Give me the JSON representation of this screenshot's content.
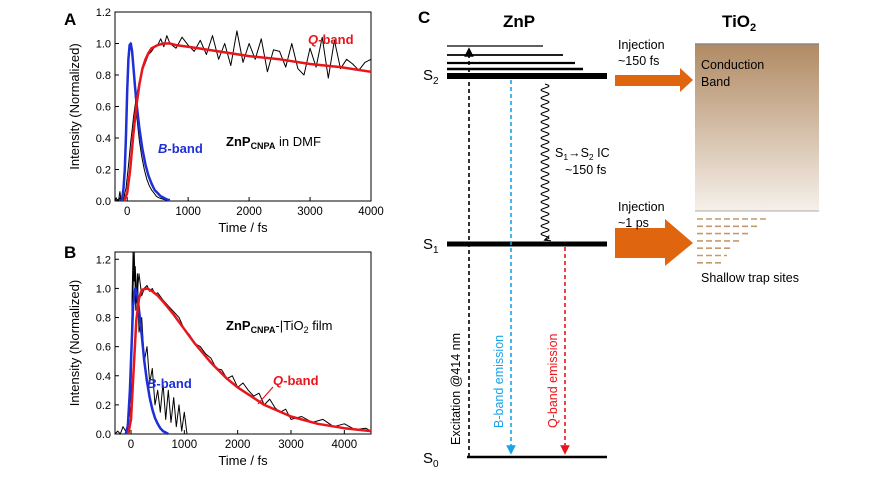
{
  "panels": {
    "a": {
      "letter": "A",
      "annotation": {
        "main": "ZnP",
        "sub": "CNPA",
        "rest": " in DMF"
      },
      "labels": {
        "q": {
          "italic": "Q",
          "rest": "-band"
        },
        "b": {
          "italic": "B",
          "rest": "-band"
        }
      }
    },
    "b": {
      "letter": "B",
      "annotation": {
        "main": "ZnP",
        "sub": "CNPA",
        "rest": "-|TiO",
        "sub2": "2",
        "rest2": " film"
      },
      "labels": {
        "q": {
          "italic": "Q",
          "rest": "-band"
        },
        "b": {
          "italic": "B",
          "rest": "-band"
        }
      }
    },
    "c": {
      "letter": "C"
    }
  },
  "chart_data": [
    {
      "type": "line",
      "panel": "A",
      "xlabel": "Time / fs",
      "ylabel": "Intensity (Normalized)",
      "xlim": [
        -200,
        4000
      ],
      "ylim": [
        0,
        1.2
      ],
      "xticks": [
        0,
        1000,
        2000,
        3000,
        4000
      ],
      "yticks": [
        0.0,
        0.2,
        0.4,
        0.6,
        0.8,
        1.0,
        1.2
      ],
      "colors": {
        "data": "#000000",
        "q_fit": "#e8151b",
        "b_fit": "#1f2fd6"
      },
      "series": [
        {
          "name": "Q-band",
          "role": "data",
          "x": [
            -200,
            -180,
            -160,
            -140,
            -120,
            -100,
            -80,
            -60,
            -40,
            -20,
            0,
            20,
            40,
            60,
            80,
            100,
            120,
            140,
            160,
            180,
            200,
            250,
            300,
            350,
            400,
            450,
            500,
            550,
            600,
            650,
            700,
            800,
            900,
            1000,
            1100,
            1200,
            1300,
            1400,
            1500,
            1600,
            1700,
            1800,
            1900,
            2000,
            2100,
            2200,
            2300,
            2400,
            2500,
            2600,
            2700,
            2800,
            2900,
            3000,
            3100,
            3200,
            3300,
            3400,
            3500,
            3600,
            3700,
            3800,
            3900,
            4000
          ],
          "y": [
            0.0,
            0.02,
            0.0,
            0.01,
            0.06,
            0.0,
            0.03,
            0.0,
            0.05,
            0.08,
            0.15,
            0.22,
            0.3,
            0.38,
            0.45,
            0.52,
            0.58,
            0.63,
            0.68,
            0.72,
            0.76,
            0.83,
            0.88,
            0.93,
            0.95,
            0.98,
            0.99,
            1.03,
            0.98,
            1.05,
            1.0,
            0.97,
            1.04,
            0.99,
            0.95,
            1.02,
            0.93,
            1.05,
            0.9,
            1.0,
            0.86,
            1.08,
            0.88,
            1.0,
            0.9,
            1.03,
            0.82,
            0.96,
            0.95,
            0.85,
            1.0,
            0.84,
            0.8,
            0.97,
            0.85,
            1.04,
            0.78,
            1.02,
            0.84,
            0.9,
            0.87,
            0.83,
            0.88,
            0.9
          ]
        },
        {
          "name": "B-band",
          "role": "data",
          "x": [
            -200,
            -180,
            -160,
            -140,
            -120,
            -100,
            -80,
            -60,
            -40,
            -20,
            0,
            20,
            40,
            60,
            80,
            100,
            120,
            140,
            160,
            180,
            200,
            240,
            280,
            320,
            360,
            400,
            440,
            480,
            520,
            560,
            600,
            640,
            680,
            720
          ],
          "y": [
            0.0,
            0.0,
            0.01,
            0.0,
            0.02,
            0.0,
            0.04,
            0.1,
            0.25,
            0.45,
            0.7,
            0.88,
            0.97,
            1.0,
            0.96,
            0.85,
            0.74,
            0.63,
            0.53,
            0.45,
            0.38,
            0.28,
            0.2,
            0.14,
            0.1,
            0.07,
            0.05,
            0.03,
            0.02,
            0.015,
            0.01,
            0.005,
            0.0,
            0.0
          ]
        },
        {
          "name": "Q-band fit",
          "role": "q_fit",
          "x": [
            -50,
            0,
            50,
            100,
            150,
            200,
            250,
            300,
            350,
            400,
            500,
            600,
            700,
            800,
            1000,
            1500,
            2000,
            2500,
            3000,
            3500,
            4000
          ],
          "y": [
            0.0,
            0.05,
            0.2,
            0.42,
            0.6,
            0.74,
            0.84,
            0.9,
            0.94,
            0.97,
            0.99,
            1.0,
            1.0,
            0.99,
            0.98,
            0.95,
            0.92,
            0.9,
            0.87,
            0.85,
            0.82
          ]
        },
        {
          "name": "B-band fit",
          "role": "b_fit",
          "x": [
            -100,
            -80,
            -60,
            -40,
            -20,
            0,
            20,
            40,
            60,
            80,
            100,
            130,
            160,
            200,
            250,
            300,
            350,
            400,
            450,
            500,
            550,
            600,
            650,
            700
          ],
          "y": [
            0.0,
            0.02,
            0.08,
            0.2,
            0.42,
            0.7,
            0.9,
            0.99,
            1.0,
            0.95,
            0.86,
            0.72,
            0.6,
            0.46,
            0.33,
            0.23,
            0.16,
            0.11,
            0.07,
            0.05,
            0.03,
            0.02,
            0.01,
            0.005
          ]
        }
      ]
    },
    {
      "type": "line",
      "panel": "B",
      "xlabel": "Time / fs",
      "ylabel": "Intensity (Normalized)",
      "xlim": [
        -300,
        4500
      ],
      "ylim": [
        0,
        1.25
      ],
      "xticks": [
        0,
        1000,
        2000,
        3000,
        4000
      ],
      "yticks": [
        0.0,
        0.2,
        0.4,
        0.6,
        0.8,
        1.0,
        1.2
      ],
      "colors": {
        "data": "#000000",
        "q_fit": "#e8151b",
        "b_fit": "#1f2fd6"
      },
      "series": [
        {
          "name": "Q-band",
          "role": "data",
          "x": [
            -300,
            -250,
            -200,
            -150,
            -100,
            -50,
            0,
            20,
            40,
            60,
            80,
            100,
            150,
            200,
            250,
            300,
            350,
            400,
            450,
            500,
            600,
            700,
            800,
            900,
            1000,
            1100,
            1200,
            1300,
            1400,
            1500,
            1600,
            1700,
            1800,
            1900,
            2000,
            2100,
            2200,
            2300,
            2400,
            2500,
            2600,
            2700,
            2800,
            2900,
            3000,
            3200,
            3400,
            3600,
            3800,
            4000,
            4200,
            4400,
            4500
          ],
          "y": [
            0.0,
            0.02,
            0.0,
            0.05,
            0.02,
            0.08,
            0.2,
            0.95,
            1.25,
            1.05,
            1.15,
            0.9,
            1.1,
            0.95,
            1.0,
            1.02,
            0.98,
            1.0,
            0.96,
            0.97,
            0.92,
            0.88,
            0.84,
            0.8,
            0.72,
            0.68,
            0.62,
            0.6,
            0.55,
            0.52,
            0.45,
            0.44,
            0.38,
            0.4,
            0.32,
            0.35,
            0.3,
            0.26,
            0.28,
            0.2,
            0.24,
            0.18,
            0.15,
            0.17,
            0.1,
            0.12,
            0.08,
            0.1,
            0.05,
            0.07,
            0.03,
            0.04,
            0.02
          ]
        },
        {
          "name": "B-band",
          "role": "data",
          "x": [
            -100,
            -50,
            0,
            30,
            60,
            90,
            120,
            150,
            200,
            250,
            300,
            350,
            400,
            450,
            500,
            550,
            600,
            650,
            700,
            750,
            800,
            850,
            900,
            950,
            1000,
            1050
          ],
          "y": [
            0.0,
            0.1,
            0.4,
            0.9,
            1.3,
            0.85,
            1.1,
            0.7,
            0.8,
            0.5,
            0.6,
            0.35,
            0.45,
            0.2,
            0.3,
            0.15,
            0.35,
            0.1,
            0.3,
            0.08,
            0.25,
            0.05,
            0.2,
            0.02,
            0.15,
            0.0
          ]
        },
        {
          "name": "Q-band fit",
          "role": "q_fit",
          "x": [
            -50,
            0,
            50,
            100,
            150,
            200,
            300,
            400,
            500,
            600,
            800,
            1000,
            1200,
            1500,
            1800,
            2000,
            2500,
            3000,
            3500,
            4000,
            4500
          ],
          "y": [
            0.0,
            0.1,
            0.45,
            0.78,
            0.93,
            0.99,
            1.0,
            0.98,
            0.95,
            0.91,
            0.82,
            0.72,
            0.62,
            0.49,
            0.38,
            0.32,
            0.2,
            0.12,
            0.07,
            0.04,
            0.02
          ]
        },
        {
          "name": "B-band fit",
          "role": "b_fit",
          "x": [
            -100,
            -60,
            -20,
            0,
            40,
            80,
            120,
            160,
            200,
            250,
            300,
            350,
            400,
            450,
            500,
            550,
            600,
            650,
            700
          ],
          "y": [
            0.0,
            0.05,
            0.3,
            0.5,
            0.88,
            1.0,
            0.95,
            0.82,
            0.68,
            0.5,
            0.36,
            0.25,
            0.17,
            0.11,
            0.07,
            0.04,
            0.02,
            0.01,
            0.0
          ]
        }
      ]
    }
  ],
  "diagram": {
    "znp_title": "ZnP",
    "tio2_title": {
      "main": "TiO",
      "sub": "2"
    },
    "levels": {
      "s2": {
        "main": "S",
        "sub": "2"
      },
      "s1": {
        "main": "S",
        "sub": "1"
      },
      "s0": {
        "main": "S",
        "sub": "0"
      }
    },
    "injection_fast": {
      "line1": "Injection",
      "line2": "~150 fs"
    },
    "injection_slow": {
      "line1": "Injection",
      "line2": "~1 ps"
    },
    "conduction_band": {
      "line1": "Conduction",
      "line2": "Band"
    },
    "ic_label": {
      "s": "S",
      "sub1": "1",
      "arrow": "→",
      "s2": "S",
      "sub2": "2",
      "rest": " IC",
      "line2": "~150 fs"
    },
    "excitation": "Excitation @414 nm",
    "b_emission": "B-band emission",
    "q_emission": "Q-band emission",
    "trap_sites": "Shallow trap sites",
    "colors": {
      "injection_arrow": "#e0650f",
      "b_emission": "#1aa3e8",
      "q_emission": "#e8151b",
      "cb_top": "#b08a63",
      "cb_bottom": "#f6f0ea",
      "trap": "#c49a6c"
    }
  }
}
